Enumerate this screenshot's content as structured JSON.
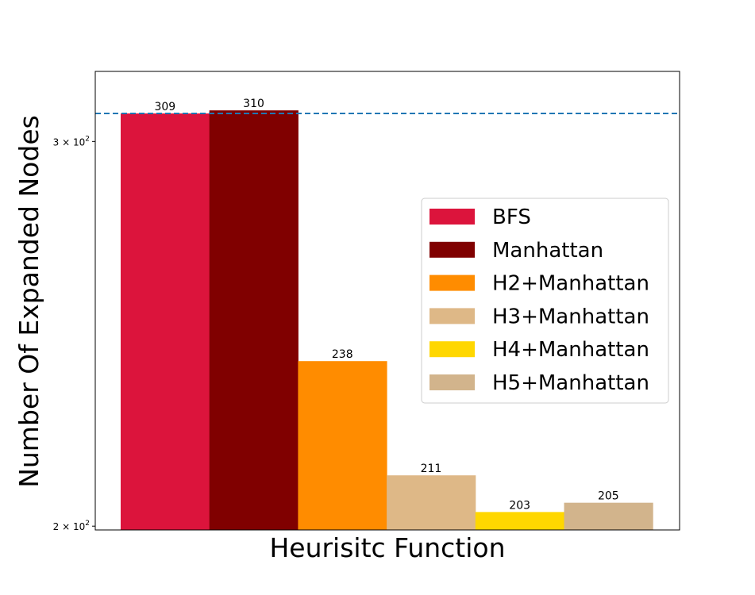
{
  "chart_data": {
    "type": "bar",
    "xlabel": "Heurisitc Function",
    "ylabel": "Number Of Expanded Nodes",
    "yscale": "log",
    "ylim": [
      199.2,
      323
    ],
    "yticks": [
      {
        "value": 200,
        "base": "2 × 10",
        "exp": "2"
      },
      {
        "value": 300,
        "base": "3 × 10",
        "exp": "2"
      }
    ],
    "reference_line": {
      "value": 309,
      "style": "dashed",
      "color": "#1f77b4"
    },
    "grid": false,
    "legend_position": "center-right",
    "series": [
      {
        "name": "BFS",
        "value": 309,
        "label": "309",
        "color": "#dc143c"
      },
      {
        "name": "Manhattan",
        "value": 310,
        "label": "310",
        "color": "#800000"
      },
      {
        "name": "H2+Manhattan",
        "value": 238,
        "label": "238",
        "color": "#ff8c00"
      },
      {
        "name": "H3+Manhattan",
        "value": 211,
        "label": "211",
        "color": "#deb887"
      },
      {
        "name": "H4+Manhattan",
        "value": 203,
        "label": "203",
        "color": "#ffd700"
      },
      {
        "name": "H5+Manhattan",
        "value": 205,
        "label": "205",
        "color": "#d2b48c"
      }
    ]
  }
}
